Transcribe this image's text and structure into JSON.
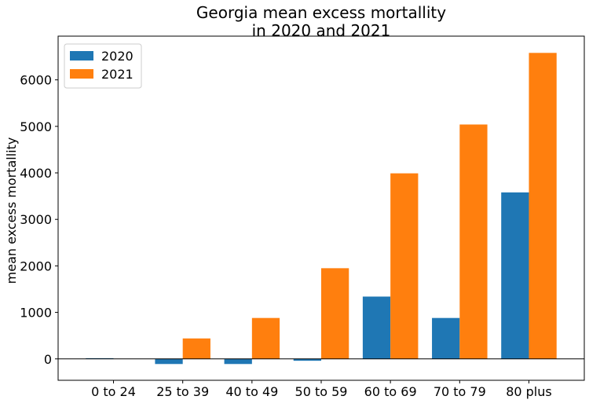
{
  "chart_data": {
    "type": "bar",
    "title_line1": "Georgia mean excess mortallity",
    "title_line2": "in 2020 and 2021",
    "xlabel": "",
    "ylabel": "mean excess mortallity",
    "categories": [
      "0 to 24",
      "25 to 39",
      "40 to 49",
      "50 to 59",
      "60 to 69",
      "70 to 79",
      "80 plus"
    ],
    "series": [
      {
        "name": "2020",
        "color": "#1f77b4",
        "values": [
          15,
          -110,
          -110,
          -40,
          1340,
          880,
          3580
        ]
      },
      {
        "name": "2021",
        "color": "#ff7f0e",
        "values": [
          0,
          440,
          880,
          1950,
          3990,
          5040,
          6580
        ]
      }
    ],
    "yticks": [
      0,
      1000,
      2000,
      3000,
      4000,
      5000,
      6000
    ],
    "ylim": [
      -460,
      6940
    ],
    "zero_line": true,
    "grid": false,
    "legend_position": "top-left"
  }
}
